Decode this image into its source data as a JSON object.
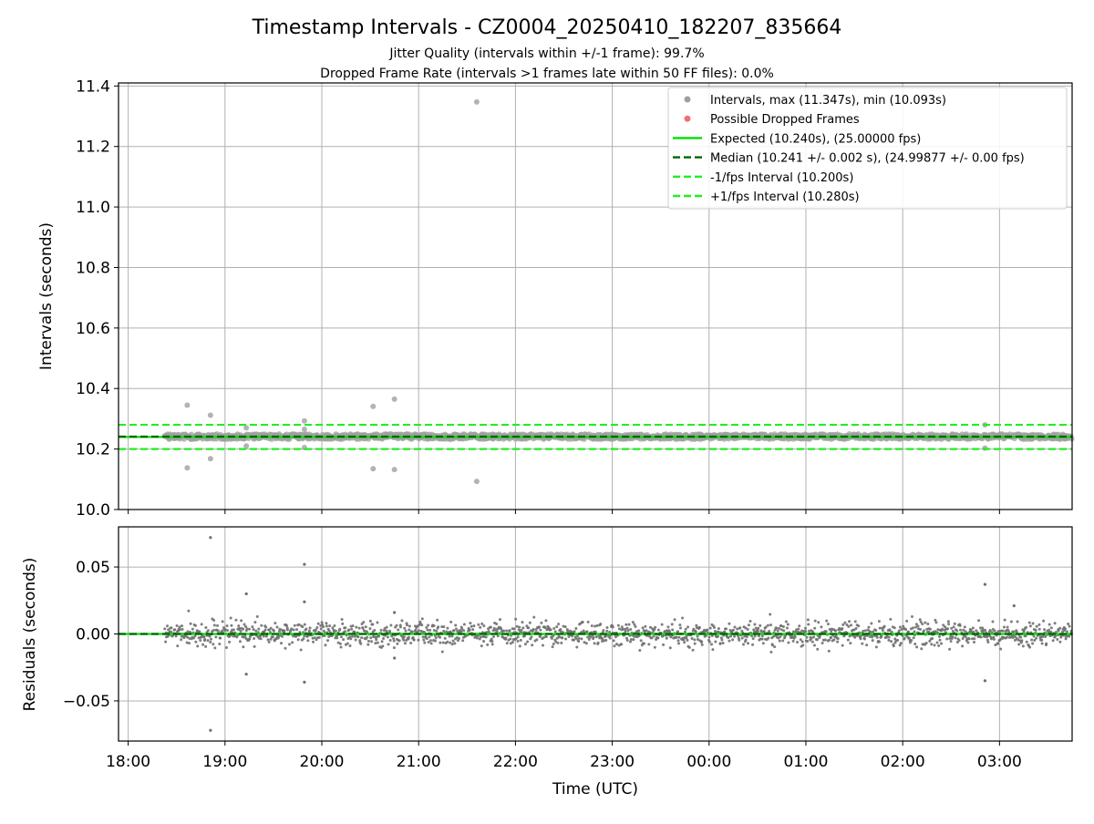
{
  "figure": {
    "title": "Timestamp Intervals - CZ0004_20250410_182207_835664",
    "subtitle_1": "Jitter Quality (intervals within +/-1 frame): 99.7%",
    "subtitle_2": "Dropped Frame Rate (intervals >1 frames late within 50 FF files): 0.0%"
  },
  "chart_data": [
    {
      "type": "scatter",
      "title": "Timestamp Intervals - CZ0004_20250410_182207_835664",
      "xlabel": "",
      "ylabel": "Intervals (seconds)",
      "x_unit": "hours since 18:00 UTC on 2025-04-10",
      "xlim": [
        -0.1,
        9.75
      ],
      "ylim": [
        10.0,
        11.41
      ],
      "yticks": [
        10.0,
        10.2,
        10.4,
        10.6,
        10.8,
        11.0,
        11.2,
        11.4
      ],
      "ytick_labels": [
        "10.0",
        "10.2",
        "10.4",
        "10.6",
        "10.8",
        "11.0",
        "11.2",
        "11.4"
      ],
      "xticks": [
        0,
        1,
        2,
        3,
        4,
        5,
        6,
        7,
        8,
        9
      ],
      "grid": true,
      "legend_position": "top-right",
      "legend": [
        {
          "label": "Intervals, max (11.347s), min (10.093s)",
          "kind": "marker",
          "color": "#a0a0a0"
        },
        {
          "label": "Possible Dropped Frames",
          "kind": "marker",
          "color": "#f07070"
        },
        {
          "label": "Expected (10.240s), (25.00000 fps)",
          "kind": "line",
          "style": "solid",
          "color": "#00e000"
        },
        {
          "label": "Median (10.241 +/- 0.002 s), (24.99877 +/- 0.00 fps)",
          "kind": "line",
          "style": "dashed",
          "color": "#006400"
        },
        {
          "label": "-1/fps Interval (10.200s)",
          "kind": "line",
          "style": "dashed",
          "color": "#22ee22"
        },
        {
          "label": "+1/fps Interval (10.280s)",
          "kind": "line",
          "style": "dashed",
          "color": "#22ee22"
        }
      ],
      "series": [
        {
          "name": "Intervals, max (11.347s), min (10.093s)",
          "color": "#a0a0a0",
          "dense_band": {
            "x_start": 0.38,
            "x_end": 9.75,
            "center": 10.241,
            "spread": 0.008
          },
          "outliers": [
            {
              "x": 0.61,
              "y": 10.345
            },
            {
              "x": 0.61,
              "y": 10.138
            },
            {
              "x": 0.85,
              "y": 10.312
            },
            {
              "x": 0.85,
              "y": 10.168
            },
            {
              "x": 1.22,
              "y": 10.27
            },
            {
              "x": 1.22,
              "y": 10.21
            },
            {
              "x": 1.82,
              "y": 10.293
            },
            {
              "x": 1.82,
              "y": 10.205
            },
            {
              "x": 1.82,
              "y": 10.265
            },
            {
              "x": 2.53,
              "y": 10.341
            },
            {
              "x": 2.53,
              "y": 10.135
            },
            {
              "x": 2.75,
              "y": 10.365
            },
            {
              "x": 2.75,
              "y": 10.132
            },
            {
              "x": 3.6,
              "y": 11.347
            },
            {
              "x": 3.6,
              "y": 10.093
            },
            {
              "x": 8.85,
              "y": 10.28
            },
            {
              "x": 8.85,
              "y": 10.203
            }
          ]
        }
      ],
      "hlines": [
        {
          "name": "Expected (10.240s), (25.00000 fps)",
          "y": 10.24,
          "color": "#00e000",
          "style": "solid"
        },
        {
          "name": "Median (10.241 +/- 0.002 s), (24.99877 +/- 0.00 fps)",
          "y": 10.241,
          "color": "#006400",
          "style": "dashed"
        },
        {
          "name": "-1/fps Interval (10.200s)",
          "y": 10.2,
          "color": "#22ee22",
          "style": "dashed"
        },
        {
          "name": "+1/fps Interval (10.280s)",
          "y": 10.28,
          "color": "#22ee22",
          "style": "dashed"
        }
      ]
    },
    {
      "type": "scatter",
      "xlabel": "Time (UTC)",
      "ylabel": "Residuals (seconds)",
      "x_unit": "hours since 18:00 UTC on 2025-04-10",
      "xlim": [
        -0.1,
        9.75
      ],
      "ylim": [
        -0.08,
        0.08
      ],
      "yticks": [
        -0.05,
        0.0,
        0.05
      ],
      "ytick_labels": [
        "−0.05",
        "0.00",
        "0.05"
      ],
      "xticks": [
        0,
        1,
        2,
        3,
        4,
        5,
        6,
        7,
        8,
        9
      ],
      "xtick_labels": [
        "18:00",
        "19:00",
        "20:00",
        "21:00",
        "22:00",
        "23:00",
        "00:00",
        "01:00",
        "02:00",
        "03:00"
      ],
      "grid": true,
      "series": [
        {
          "color": "#707070",
          "dense_band": {
            "x_start": 0.38,
            "x_end": 9.75,
            "center": 0.0,
            "spread": 0.0045
          },
          "outliers": [
            {
              "x": 0.85,
              "y": 0.072
            },
            {
              "x": 0.85,
              "y": -0.072
            },
            {
              "x": 1.22,
              "y": 0.03
            },
            {
              "x": 1.22,
              "y": -0.03
            },
            {
              "x": 1.82,
              "y": 0.052
            },
            {
              "x": 1.82,
              "y": 0.024
            },
            {
              "x": 1.82,
              "y": -0.036
            },
            {
              "x": 2.75,
              "y": 0.016
            },
            {
              "x": 2.75,
              "y": -0.018
            },
            {
              "x": 8.85,
              "y": 0.037
            },
            {
              "x": 8.85,
              "y": -0.035
            },
            {
              "x": 9.15,
              "y": 0.021
            }
          ]
        }
      ],
      "hlines": [
        {
          "y": 0.0,
          "color": "#00e000",
          "style": "solid"
        },
        {
          "y": 0.0,
          "color": "#006400",
          "style": "dashed"
        }
      ]
    }
  ]
}
